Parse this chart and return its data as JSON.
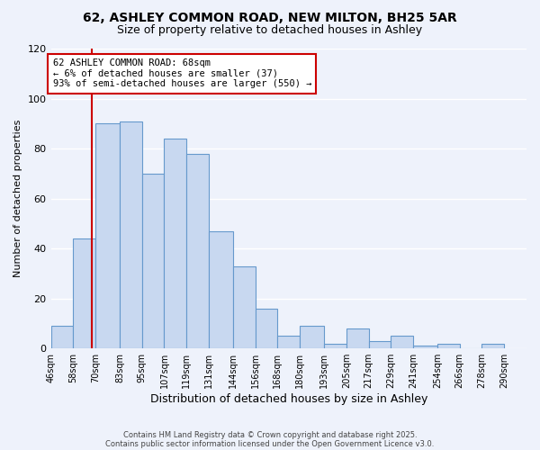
{
  "title1": "62, ASHLEY COMMON ROAD, NEW MILTON, BH25 5AR",
  "title2": "Size of property relative to detached houses in Ashley",
  "xlabel": "Distribution of detached houses by size in Ashley",
  "ylabel": "Number of detached properties",
  "bin_labels": [
    "46sqm",
    "58sqm",
    "70sqm",
    "83sqm",
    "95sqm",
    "107sqm",
    "119sqm",
    "131sqm",
    "144sqm",
    "156sqm",
    "168sqm",
    "180sqm",
    "193sqm",
    "205sqm",
    "217sqm",
    "229sqm",
    "241sqm",
    "254sqm",
    "266sqm",
    "278sqm",
    "290sqm"
  ],
  "bin_edges": [
    46,
    58,
    70,
    83,
    95,
    107,
    119,
    131,
    144,
    156,
    168,
    180,
    193,
    205,
    217,
    229,
    241,
    254,
    266,
    278,
    290
  ],
  "bar_values": [
    9,
    44,
    90,
    91,
    70,
    84,
    78,
    47,
    33,
    16,
    5,
    9,
    2,
    8,
    3,
    5,
    1,
    2,
    0,
    2
  ],
  "bar_color": "#c8d8f0",
  "bar_edge_color": "#6699cc",
  "vline_x": 68,
  "vline_color": "#cc0000",
  "annotation_lines": [
    "62 ASHLEY COMMON ROAD: 68sqm",
    "← 6% of detached houses are smaller (37)",
    "93% of semi-detached houses are larger (550) →"
  ],
  "annotation_box_edge": "#cc0000",
  "ylim": [
    0,
    120
  ],
  "yticks": [
    0,
    20,
    40,
    60,
    80,
    100,
    120
  ],
  "footer1": "Contains HM Land Registry data © Crown copyright and database right 2025.",
  "footer2": "Contains public sector information licensed under the Open Government Licence v3.0.",
  "bg_color": "#eef2fb",
  "grid_color": "#ffffff"
}
